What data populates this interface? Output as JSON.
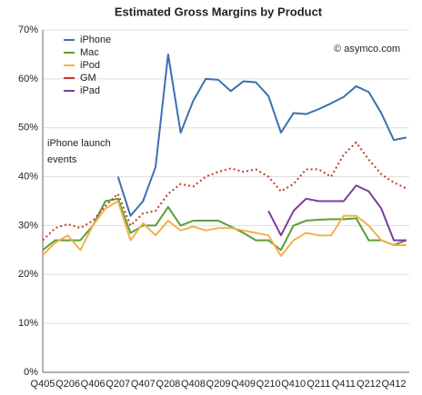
{
  "chart_data": {
    "type": "line",
    "title": "Estimated Gross Margins by Product",
    "annotations": [
      "© asymco.com",
      "iPhone launch",
      "events"
    ],
    "categories": [
      "Q405",
      null,
      "Q206",
      null,
      "Q406",
      null,
      "Q207",
      null,
      "Q407",
      null,
      "Q208",
      null,
      "Q408",
      null,
      "Q209",
      null,
      "Q409",
      null,
      "Q210",
      null,
      "Q410",
      null,
      "Q211",
      null,
      "Q411",
      null,
      "Q212",
      null,
      "Q412",
      null
    ],
    "series": [
      {
        "name": "iPhone",
        "color": "#3d6fb0",
        "values": [
          null,
          null,
          null,
          null,
          null,
          null,
          40,
          32,
          35,
          42,
          65,
          49,
          55.5,
          60,
          59.8,
          57.5,
          59.5,
          59.3,
          56.5,
          49,
          53,
          52.8,
          53.8,
          55,
          56.3,
          58.5,
          57.3,
          53,
          47.5,
          48
        ]
      },
      {
        "name": "Mac",
        "color": "#5a9e3a",
        "values": [
          25,
          27,
          27,
          27,
          30,
          35,
          35.5,
          28.5,
          30,
          30,
          33.8,
          30,
          31,
          31,
          31,
          29.8,
          28.5,
          27,
          27,
          25,
          30,
          31,
          31.2,
          31.3,
          31.3,
          31.5,
          27,
          27,
          26,
          27
        ]
      },
      {
        "name": "iPod",
        "color": "#f0b34b",
        "values": [
          24,
          26.5,
          28,
          25,
          30,
          33.5,
          35,
          27,
          30.5,
          28,
          31,
          29,
          29.8,
          29,
          29.5,
          29.5,
          29,
          28.5,
          28,
          23.8,
          27,
          28.5,
          28,
          28,
          32,
          32,
          30,
          27,
          26,
          26
        ]
      },
      {
        "name": "GM",
        "color": "#c23a2a",
        "dashed": true,
        "values": [
          27,
          29.5,
          30.3,
          29.5,
          31,
          34,
          36.5,
          30,
          32.5,
          33,
          36.5,
          38.5,
          38,
          40,
          41,
          41.7,
          41,
          41.5,
          40,
          37,
          38.5,
          41.5,
          41.5,
          40,
          44.5,
          47,
          43.5,
          40.5,
          38.8,
          37.6
        ]
      },
      {
        "name": "iPad",
        "color": "#7b3f9a",
        "values": [
          null,
          null,
          null,
          null,
          null,
          null,
          null,
          null,
          null,
          null,
          null,
          null,
          null,
          null,
          null,
          null,
          null,
          null,
          33,
          28,
          33,
          35.5,
          35,
          35,
          35,
          38.2,
          37,
          33.5,
          27,
          27
        ]
      }
    ],
    "ylim": [
      0,
      70
    ],
    "yticks": [
      {
        "value": 0,
        "label": "0%"
      },
      {
        "value": 10,
        "label": "10%"
      },
      {
        "value": 20,
        "label": "20%"
      },
      {
        "value": 30,
        "label": "30%"
      },
      {
        "value": 40,
        "label": "40%"
      },
      {
        "value": 50,
        "label": "50%"
      },
      {
        "value": 60,
        "label": "60%"
      },
      {
        "value": 70,
        "label": "70%"
      }
    ],
    "grid": true
  }
}
